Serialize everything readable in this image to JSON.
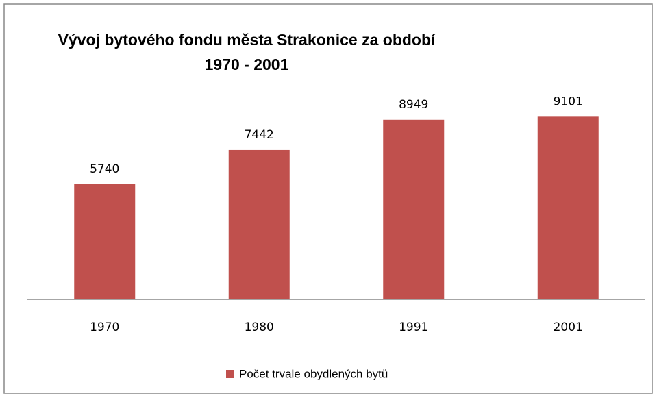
{
  "chart_data": {
    "type": "bar",
    "title": "Vývoj bytového fondu města Strakonice za období\n1970 - 2001",
    "categories": [
      "1970",
      "1980",
      "1991",
      "2001"
    ],
    "series": [
      {
        "name": "Počet trvale obydlených bytů",
        "color": "#c0504d",
        "values": [
          5740,
          7442,
          8949,
          9101
        ]
      }
    ],
    "ylim": [
      0,
      10000
    ],
    "legend": "bottom"
  }
}
